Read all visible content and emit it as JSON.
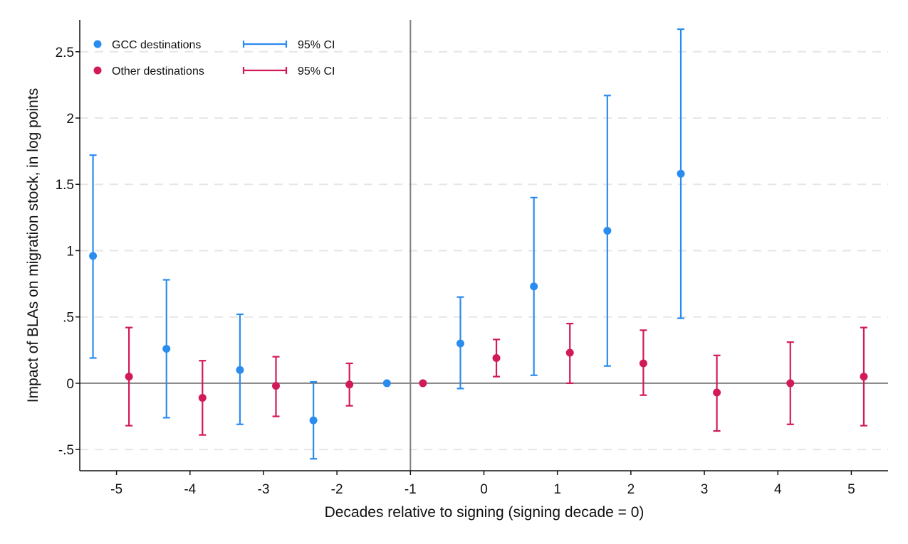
{
  "chart_data": {
    "type": "scatter",
    "xlabel": "Decades relative to signing (signing decade = 0)",
    "ylabel": "Impact of BLAs on migration stock, in log points",
    "categories": [
      -5,
      -4,
      -3,
      -2,
      -1,
      0,
      1,
      2,
      3,
      4,
      5
    ],
    "x_tick_labels": [
      "-5",
      "-4",
      "-3",
      "-2",
      "-1",
      "0",
      "1",
      "2",
      "3",
      "4",
      "5"
    ],
    "y_ticks": [
      -0.5,
      0,
      0.5,
      1,
      1.5,
      2,
      2.5
    ],
    "y_tick_labels": [
      "-.5",
      "0",
      ".5",
      "1",
      "1.5",
      "2",
      "2.5"
    ],
    "xlim": [
      -5.5,
      5.5
    ],
    "ylim": [
      -0.66,
      2.74
    ],
    "reference_lines": {
      "x": -1,
      "y": 0
    },
    "grid": "dashed horizontal",
    "legend": {
      "placement": "top-left",
      "markers": [
        "GCC destinations",
        "Other destinations"
      ],
      "ci_label": "95% CI"
    },
    "series": [
      {
        "name": "GCC destinations",
        "color": "#2b8cf0",
        "x": [
          -5,
          -4,
          -3,
          -2,
          -1,
          0,
          1,
          2,
          3
        ],
        "values": [
          0.96,
          0.26,
          0.1,
          -0.28,
          0.0,
          0.3,
          0.73,
          1.15,
          1.58
        ],
        "ci_low": [
          0.19,
          -0.26,
          -0.31,
          -0.57,
          null,
          -0.04,
          0.06,
          0.13,
          0.49
        ],
        "ci_high": [
          1.72,
          0.78,
          0.52,
          0.01,
          null,
          0.65,
          1.4,
          2.17,
          2.67
        ]
      },
      {
        "name": "Other destinations",
        "color": "#d21a5a",
        "x": [
          -5,
          -4,
          -3,
          -2,
          -1,
          0,
          1,
          2,
          3,
          4,
          5
        ],
        "values": [
          0.05,
          -0.11,
          -0.02,
          -0.01,
          0.0,
          0.19,
          0.23,
          0.15,
          -0.07,
          0.0,
          0.05
        ],
        "ci_low": [
          -0.32,
          -0.39,
          -0.25,
          -0.17,
          null,
          0.05,
          0.0,
          -0.09,
          -0.36,
          -0.31,
          -0.32
        ],
        "ci_high": [
          0.42,
          0.17,
          0.2,
          0.15,
          null,
          0.33,
          0.45,
          0.4,
          0.21,
          0.31,
          0.42
        ]
      }
    ]
  }
}
